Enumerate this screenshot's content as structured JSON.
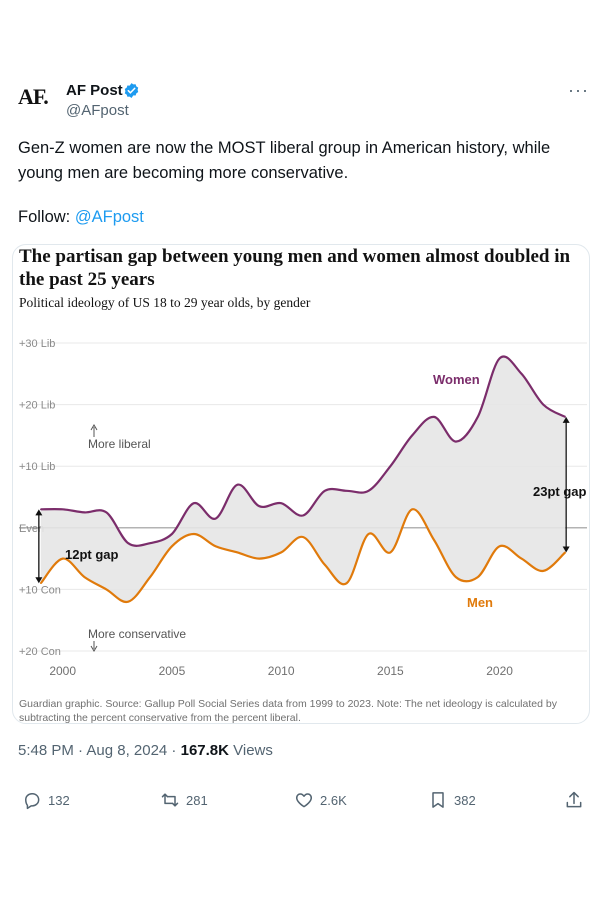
{
  "author": {
    "avatar_text": "AF.",
    "name": "AF Post",
    "handle": "@AFpost"
  },
  "tweet": {
    "text": "Gen-Z women are now the MOST liberal group in American history, while young men are becoming more conservative.",
    "follow_label": "Follow: ",
    "follow_link": "@AFpost"
  },
  "footer": {
    "timestamp": "5:48 PM · Aug 8, 2024 · ",
    "views_count": "167.8K",
    "views_label": " Views"
  },
  "actions": {
    "replies": "132",
    "reposts": "281",
    "likes": "2.6K",
    "bookmarks": "382"
  },
  "colors": {
    "women": "#7b2d6b",
    "men": "#e07a0b",
    "gap_fill": "#e6e6e6",
    "link": "#1d9bf0"
  },
  "chart_data": {
    "type": "line",
    "title": "The partisan gap between young men and women almost doubled in the past 25 years",
    "subtitle": "Political ideology of US 18 to 29 year olds, by gender",
    "ylim": [
      -20,
      30
    ],
    "xlim": [
      1998,
      2024
    ],
    "ytick_values": [
      30,
      20,
      10,
      0,
      -10,
      -20
    ],
    "ytick_labels": [
      "+30 Lib",
      "+20 Lib",
      "+10 Lib",
      "Even",
      "+10 Con",
      "+20 Con"
    ],
    "xtick_values": [
      2000,
      2005,
      2010,
      2015,
      2020
    ],
    "xtick_labels": [
      "2000",
      "2005",
      "2010",
      "2015",
      "2020"
    ],
    "series": [
      {
        "name": "Women",
        "x": [
          1999,
          2000,
          2001,
          2002,
          2003,
          2004,
          2005,
          2006,
          2007,
          2008,
          2009,
          2010,
          2011,
          2012,
          2013,
          2014,
          2015,
          2016,
          2017,
          2018,
          2019,
          2020,
          2021,
          2022,
          2023
        ],
        "values": [
          3,
          3,
          2.5,
          2.5,
          -2.5,
          -2.5,
          -1,
          4,
          1.5,
          7,
          3.5,
          4,
          2,
          6,
          6,
          6,
          10,
          15,
          18,
          14,
          18,
          27.5,
          25,
          20,
          18
        ]
      },
      {
        "name": "Men",
        "x": [
          1999,
          2000,
          2001,
          2002,
          2003,
          2004,
          2005,
          2006,
          2007,
          2008,
          2009,
          2010,
          2011,
          2012,
          2013,
          2014,
          2015,
          2016,
          2017,
          2018,
          2019,
          2020,
          2021,
          2022,
          2023
        ],
        "values": [
          -9,
          -5,
          -8,
          -10,
          -12,
          -8,
          -3,
          -1,
          -3,
          -4,
          -5,
          -4,
          -1.5,
          -6,
          -9,
          -1,
          -4,
          3,
          -2,
          -8,
          -8,
          -3,
          -5,
          -7,
          -4
        ]
      }
    ],
    "annotations": [
      {
        "text": "More liberal"
      },
      {
        "text": "More conservative"
      },
      {
        "text": "Women"
      },
      {
        "text": "Men"
      },
      {
        "text": "12pt gap"
      },
      {
        "text": "23pt gap"
      }
    ],
    "note": "Guardian graphic. Source: Gallup Poll Social Series data from 1999 to 2023. Note: The net ideology is calculated by subtracting the percent conservative from the percent liberal."
  }
}
